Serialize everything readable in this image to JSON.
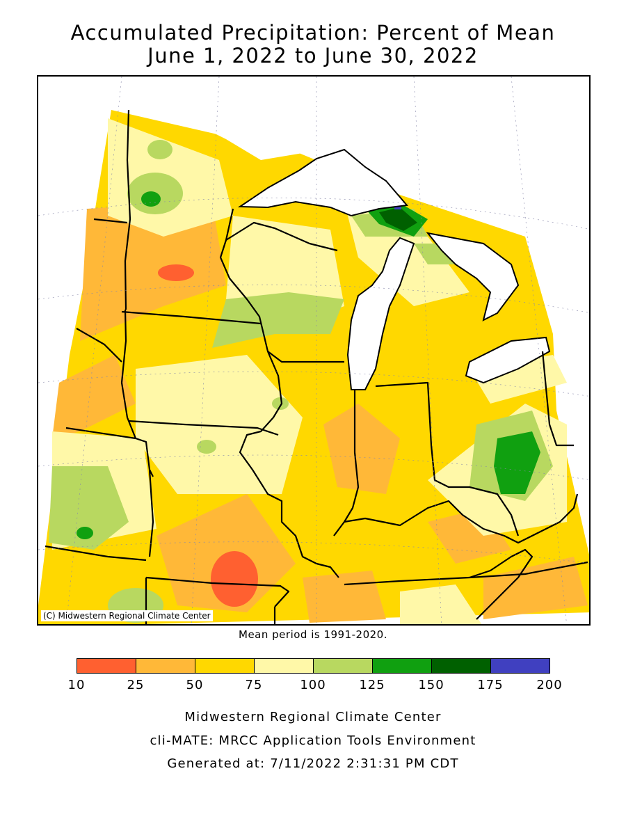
{
  "title": {
    "line1": "Accumulated Precipitation: Percent of Mean",
    "line2": "June 1, 2022 to June 30, 2022"
  },
  "map": {
    "credit": "(C) Midwestern Regional Climate Center",
    "mean_note": "Mean period is 1991-2020."
  },
  "legend": {
    "bins": [
      {
        "from": 10,
        "to": 25,
        "color": "#ff6030"
      },
      {
        "from": 25,
        "to": 50,
        "color": "#ffb838"
      },
      {
        "from": 50,
        "to": 75,
        "color": "#ffd800"
      },
      {
        "from": 75,
        "to": 100,
        "color": "#fff8a8"
      },
      {
        "from": 100,
        "to": 125,
        "color": "#b8d860"
      },
      {
        "from": 125,
        "to": 150,
        "color": "#10a010"
      },
      {
        "from": 150,
        "to": 175,
        "color": "#006000"
      },
      {
        "from": 175,
        "to": 200,
        "color": "#4040c0"
      }
    ],
    "labels": [
      "10",
      "25",
      "50",
      "75",
      "100",
      "125",
      "150",
      "175",
      "200"
    ]
  },
  "footer": {
    "line1": "Midwestern Regional Climate Center",
    "line2": "cli-MATE: MRCC Application Tools Environment",
    "line3": "Generated at: 7/11/2022 2:31:31 PM CDT"
  }
}
